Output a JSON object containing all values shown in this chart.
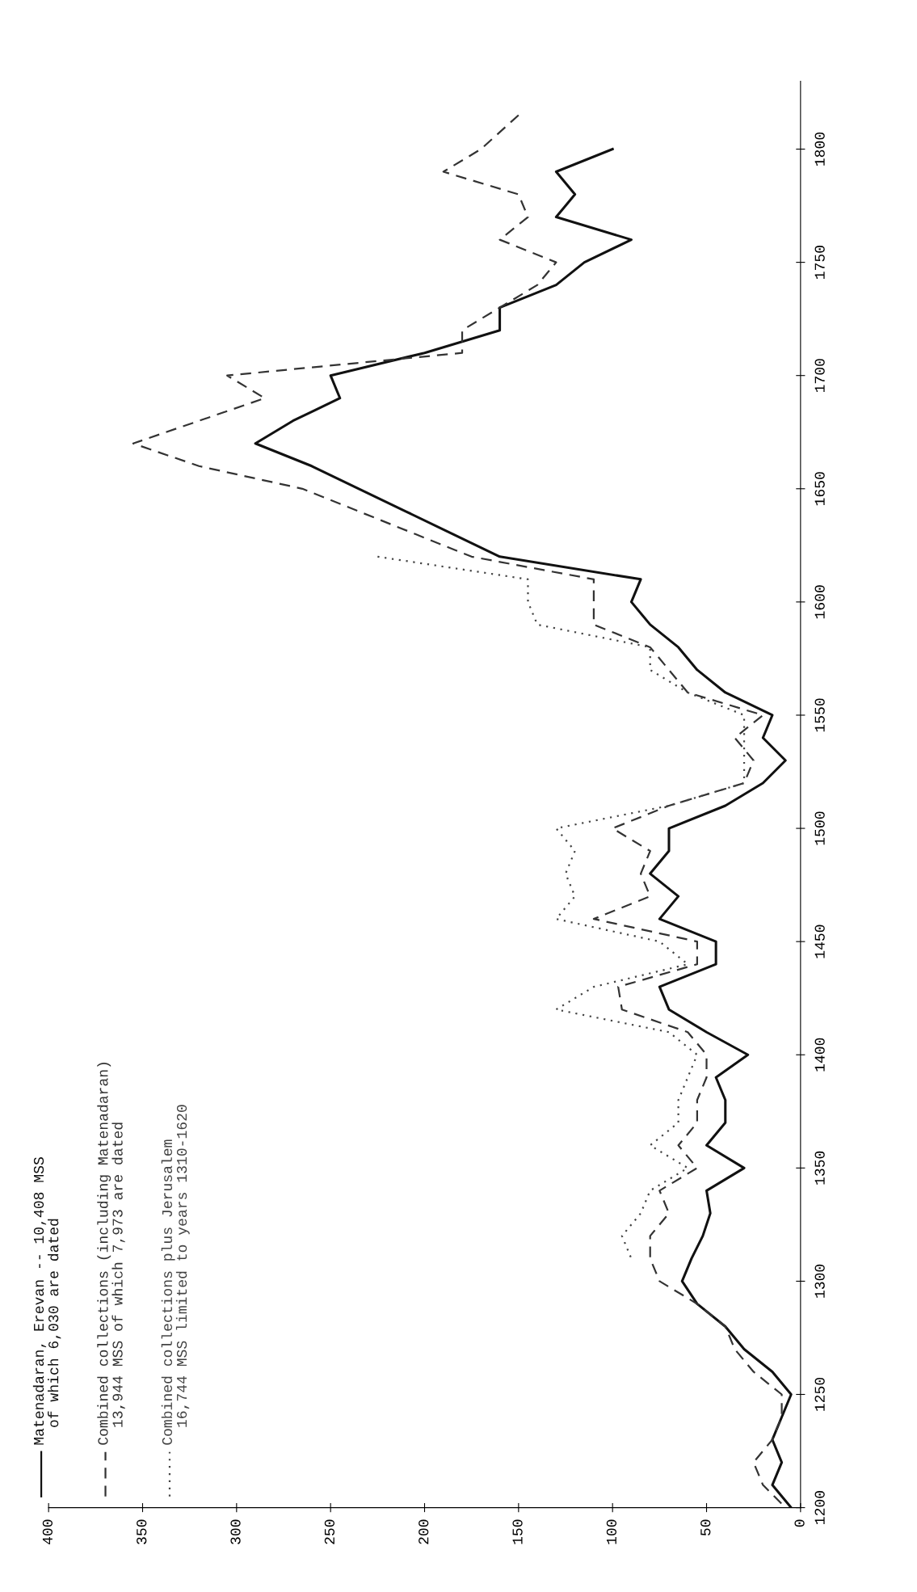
{
  "chart_data": {
    "type": "line",
    "orientation": "horizontal",
    "xlim": [
      400,
      0
    ],
    "xticks": [
      400,
      350,
      300,
      250,
      200,
      150,
      100,
      50,
      0
    ],
    "ylim": [
      1200,
      1830
    ],
    "yticks": [
      1200,
      1250,
      1300,
      1350,
      1400,
      1450,
      1500,
      1550,
      1600,
      1650,
      1700,
      1750,
      1800
    ],
    "grid": false,
    "legend": "bottom left",
    "marker": "none",
    "series": [
      {
        "name": "Matenadaran, Erevan -- 10,408 MSS\n  of which 6,030 are dated",
        "color": "#111111",
        "line_style": "solid",
        "x": [
          1200,
          1210,
          1220,
          1230,
          1240,
          1250,
          1260,
          1270,
          1280,
          1290,
          1300,
          1310,
          1320,
          1330,
          1340,
          1350,
          1360,
          1370,
          1380,
          1390,
          1400,
          1410,
          1420,
          1430,
          1440,
          1450,
          1460,
          1470,
          1480,
          1490,
          1500,
          1510,
          1520,
          1530,
          1540,
          1550,
          1560,
          1570,
          1580,
          1590,
          1600,
          1610,
          1620,
          1630,
          1640,
          1650,
          1660,
          1670,
          1680,
          1690,
          1700,
          1710,
          1720,
          1730,
          1740,
          1750,
          1760,
          1770,
          1780,
          1790,
          1800
        ],
        "values": [
          5,
          15,
          10,
          15,
          10,
          5,
          15,
          30,
          40,
          55,
          63,
          58,
          52,
          48,
          50,
          30,
          50,
          40,
          40,
          45,
          28,
          50,
          70,
          75,
          45,
          45,
          75,
          65,
          80,
          70,
          70,
          40,
          20,
          8,
          20,
          15,
          40,
          55,
          65,
          80,
          90,
          85,
          160,
          185,
          210,
          235,
          260,
          290,
          270,
          245,
          250,
          200,
          160,
          160,
          130,
          115,
          90,
          130,
          120,
          130,
          100
        ]
      },
      {
        "name": "Combined collections (including Matenadaran)\n  13,944 MSS of which 7,973 are dated",
        "color": "#333333",
        "line_style": "dashed",
        "x": [
          1200,
          1210,
          1220,
          1230,
          1240,
          1250,
          1260,
          1270,
          1280,
          1290,
          1300,
          1310,
          1320,
          1330,
          1340,
          1350,
          1360,
          1370,
          1380,
          1390,
          1400,
          1410,
          1420,
          1430,
          1440,
          1450,
          1460,
          1470,
          1480,
          1490,
          1500,
          1510,
          1520,
          1530,
          1540,
          1550,
          1560,
          1570,
          1580,
          1590,
          1600,
          1610,
          1620,
          1630,
          1640,
          1650,
          1660,
          1670,
          1680,
          1690,
          1700,
          1710,
          1720,
          1730,
          1740,
          1750,
          1760,
          1770,
          1780,
          1790,
          1800,
          1815
        ],
        "values": [
          8,
          20,
          25,
          15,
          10,
          10,
          25,
          35,
          40,
          55,
          75,
          80,
          80,
          70,
          75,
          55,
          65,
          55,
          55,
          50,
          50,
          60,
          95,
          97,
          55,
          55,
          110,
          80,
          85,
          80,
          100,
          70,
          30,
          25,
          35,
          20,
          60,
          70,
          80,
          110,
          110,
          110,
          175,
          205,
          235,
          265,
          320,
          355,
          320,
          285,
          305,
          180,
          180,
          160,
          140,
          130,
          160,
          145,
          150,
          190,
          170,
          150
        ]
      },
      {
        "name": "Combined collections plus Jerusalem\n  16,744 MSS limited to years 1310-1620",
        "color": "#444444",
        "line_style": "dotted",
        "x": [
          1310,
          1320,
          1330,
          1340,
          1350,
          1360,
          1370,
          1380,
          1390,
          1400,
          1410,
          1420,
          1430,
          1440,
          1450,
          1460,
          1470,
          1480,
          1490,
          1500,
          1510,
          1520,
          1530,
          1540,
          1550,
          1560,
          1570,
          1580,
          1590,
          1600,
          1610,
          1620
        ],
        "values": [
          90,
          95,
          85,
          80,
          60,
          80,
          65,
          65,
          60,
          55,
          70,
          130,
          110,
          60,
          75,
          130,
          120,
          125,
          120,
          130,
          70,
          30,
          30,
          30,
          30,
          60,
          80,
          80,
          140,
          145,
          145,
          225
        ]
      }
    ]
  }
}
